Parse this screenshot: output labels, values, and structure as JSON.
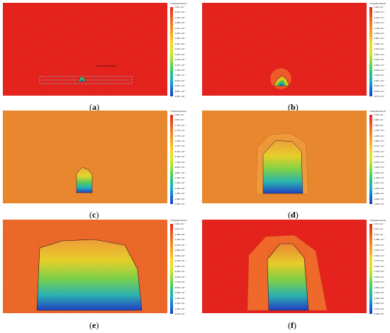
{
  "figure": {
    "legend_title": "Y-displacement",
    "colormap_top": "#e8231d",
    "colormap_bottom": "#1a3ec8",
    "panels": [
      {
        "id": "a",
        "caption_letter": "a",
        "bg_color": "#e8231d",
        "annotation": "no boundary range",
        "legend_ticks": [
          "1.101 x 10⁻²",
          "-6.427 x 10⁻³",
          "-1.245 x 10⁻²",
          "-1.859 x 10⁻²",
          "-2.471 x 10⁻²",
          "-3.076 x 10⁻²",
          "-3.691 x 10⁻²",
          "-4.301 x 10⁻²",
          "-4.913 x 10⁻²",
          "-5.524 x 10⁻²",
          "-6.135 x 10⁻²",
          "-6.747 x 10⁻²",
          "-7.356 x 10⁻²",
          "-7.969 x 10⁻²",
          "-8.579 x 10⁻²",
          "-9.191 x 10⁻²",
          "-9.801 x 10⁻²",
          "-1.041 x 10⁻¹"
        ]
      },
      {
        "id": "b",
        "caption_letter": "b",
        "bg_color": "#e8231d",
        "legend_ticks": [
          "1.301 x 10⁻²",
          "-5.952 x 10⁻³",
          "-5.412 x 10⁻²",
          "-1.129 x 10⁻¹",
          "-1.719 x 10⁻¹",
          "-2.308 x 10⁻¹",
          "-2.897 x 10⁻¹",
          "-3.485 x 10⁻¹",
          "-4.074 x 10⁻¹",
          "-4.663 x 10⁻¹",
          "-5.252 x 10⁻¹",
          "-5.840 x 10⁻¹",
          "-6.429 x 10⁻¹",
          "-7.018 x 10⁻¹",
          "-7.607 x 10⁻¹",
          "-8.196 x 10⁻¹",
          "-8.784 x 10⁻¹",
          "-9.373 x 10⁻¹"
        ]
      },
      {
        "id": "c",
        "caption_letter": "c",
        "bg_color": "#ec8a2f",
        "legend_ticks": [
          "1.236 x 10⁻¹",
          "2.326 x 10⁻²",
          "-7.715 x 10⁻²",
          "-1.775 x 10⁻¹",
          "-2.779 x 10⁻¹",
          "-3.783 x 10⁻¹",
          "-4.787 x 10⁻¹",
          "-5.791 x 10⁻¹",
          "-6.795 x 10⁻¹",
          "-7.799 x 10⁻¹",
          "-8.803 x 10⁻¹",
          "-9.807 x 10⁻¹",
          "-1.081 x 10⁰",
          "-1.182 x 10⁰",
          "-1.282 x 10⁰",
          "-1.383 x 10⁰",
          "-1.483 x 10⁰",
          "-1.583 x 10⁰"
        ]
      },
      {
        "id": "d",
        "caption_letter": "d",
        "bg_color": "#ec8a2f",
        "legend_ticks": [
          "2.736 x 10⁻¹",
          "1.428 x 10⁻¹",
          "1.206 x 10⁻²",
          "-1.187 x 10⁻¹",
          "-2.495 x 10⁻¹",
          "-3.803 x 10⁻¹",
          "-5.111 x 10⁻¹",
          "-6.419 x 10⁻¹",
          "-7.727 x 10⁻¹",
          "-9.035 x 10⁻¹",
          "-1.034 x 10⁰",
          "-1.165 x 10⁰",
          "-1.296 x 10⁰",
          "-1.427 x 10⁰",
          "-1.557 x 10⁰",
          "-1.688 x 10⁰",
          "-1.819 x 10⁰",
          "-1.950 x 10⁰"
        ]
      },
      {
        "id": "e",
        "caption_letter": "e",
        "bg_color": "#ef6a2a",
        "legend_ticks": [
          "1.226 x 10⁻¹",
          "4.113 x 10⁻²",
          "-4.038 x 10⁻²",
          "-1.219 x 10⁻¹",
          "-2.034 x 10⁻¹",
          "-2.849 x 10⁻¹",
          "-3.664 x 10⁻¹",
          "-4.479 x 10⁻¹",
          "-5.294 x 10⁻¹",
          "-6.109 x 10⁻¹",
          "-6.924 x 10⁻¹",
          "-7.739 x 10⁻¹",
          "-8.554 x 10⁻¹",
          "-9.369 x 10⁻¹",
          "-1.018 x 10⁰",
          "-1.100 x 10⁰",
          "-1.181 x 10⁰",
          "-1.263 x 10⁰"
        ]
      },
      {
        "id": "f",
        "caption_letter": "f",
        "bg_color": "#e8231d",
        "legend_ticks": [
          "3.271 x 10⁻¹",
          "2.121 x 10⁻¹",
          "9.714 x 10⁻²",
          "-1.786 x 10⁻²",
          "-1.329 x 10⁻¹",
          "-2.479 x 10⁻¹",
          "-3.629 x 10⁻¹",
          "-4.779 x 10⁻¹",
          "-5.929 x 10⁻¹",
          "-7.079 x 10⁻¹",
          "-8.229 x 10⁻¹",
          "-9.379 x 10⁻¹",
          "-1.053 x 10⁰",
          "-1.168 x 10⁰",
          "-1.283 x 10⁰",
          "-1.398 x 10⁰",
          "-1.513 x 10⁰",
          "-1.628 x 10⁰"
        ]
      }
    ]
  }
}
